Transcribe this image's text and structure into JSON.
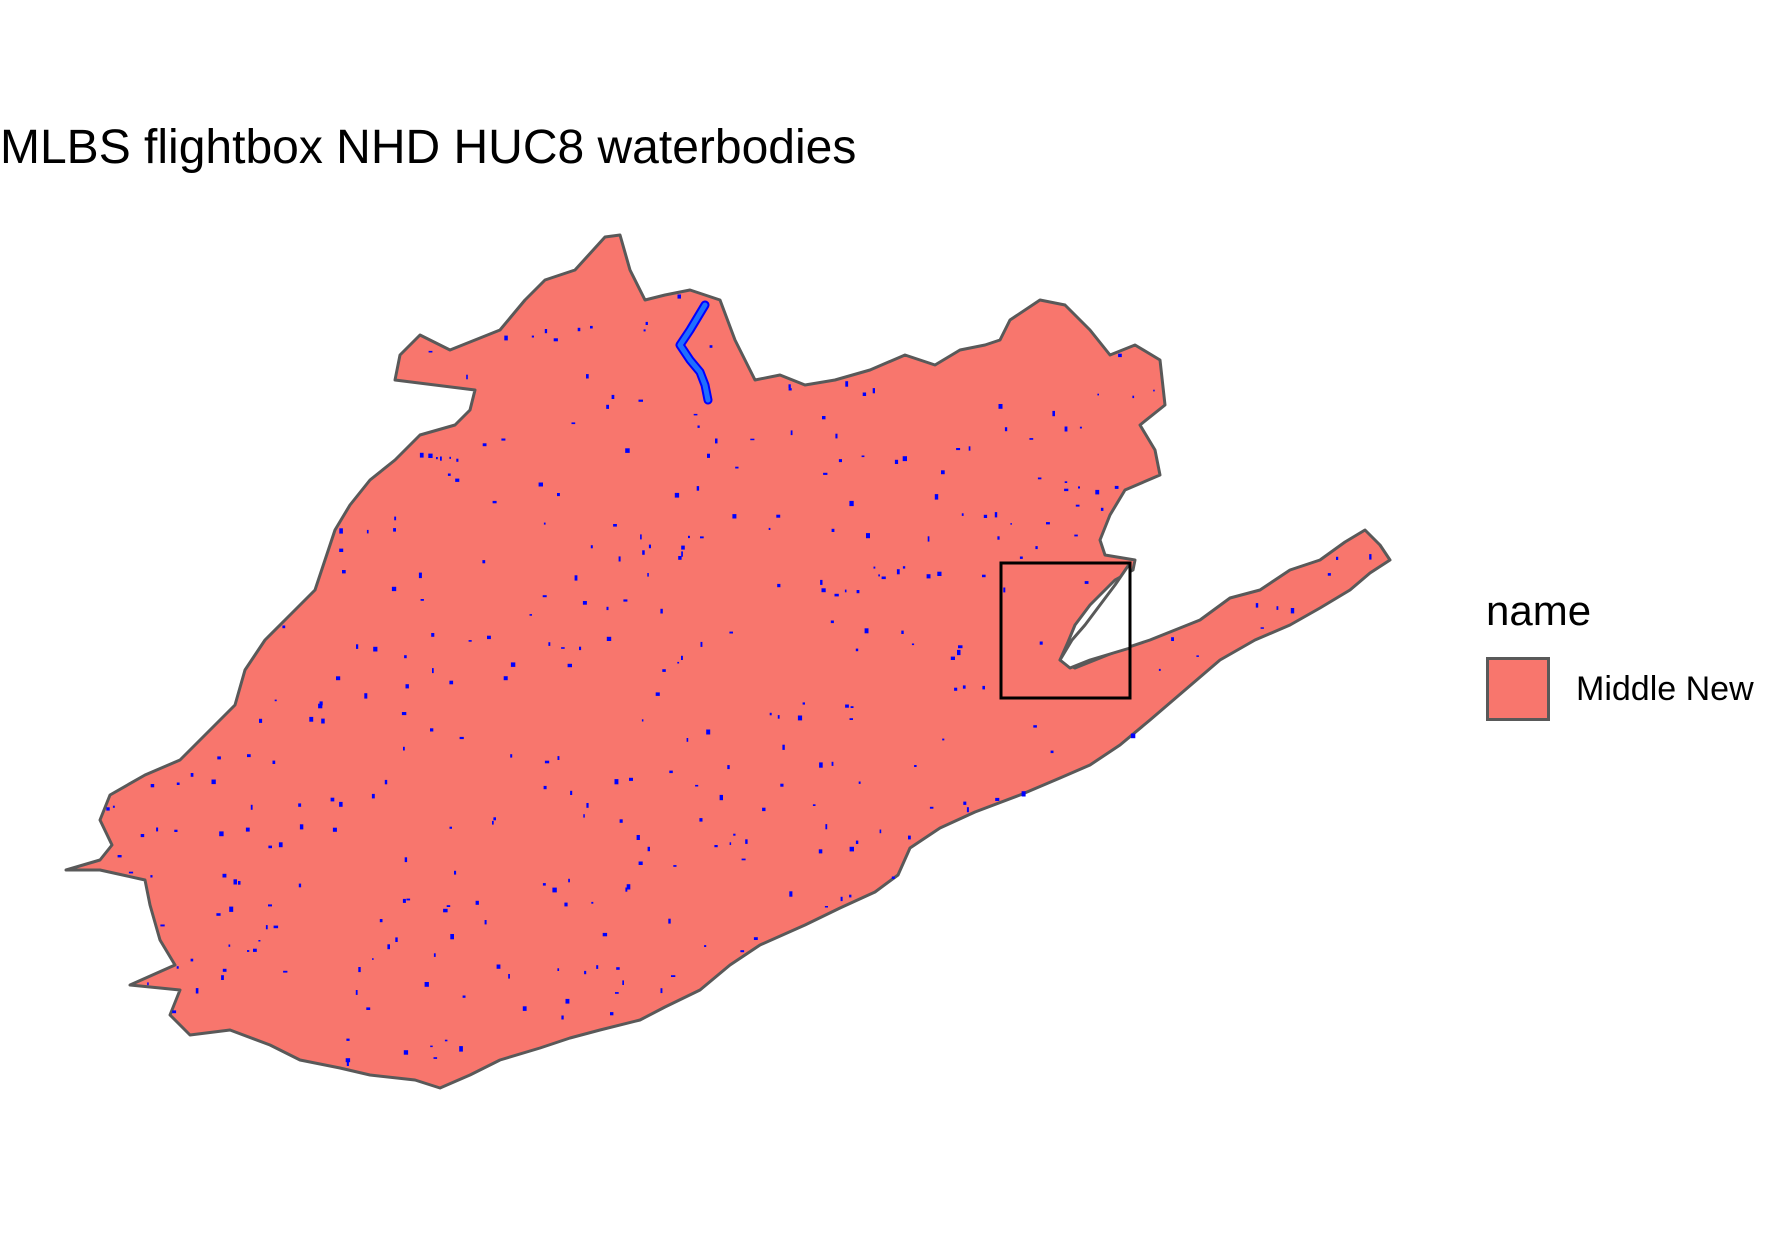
{
  "title": "MLBS flightbox NHD HUC8 waterbodies",
  "legend": {
    "title": "name",
    "items": [
      {
        "label": "Middle New",
        "color": "#F8766D"
      }
    ]
  },
  "map": {
    "fill_color": "#F8766D",
    "outline_color": "#595959",
    "waterbody_color": "#0000FF",
    "river_color": "#1E6FFF",
    "flightbox_outline_color": "#000000"
  }
}
